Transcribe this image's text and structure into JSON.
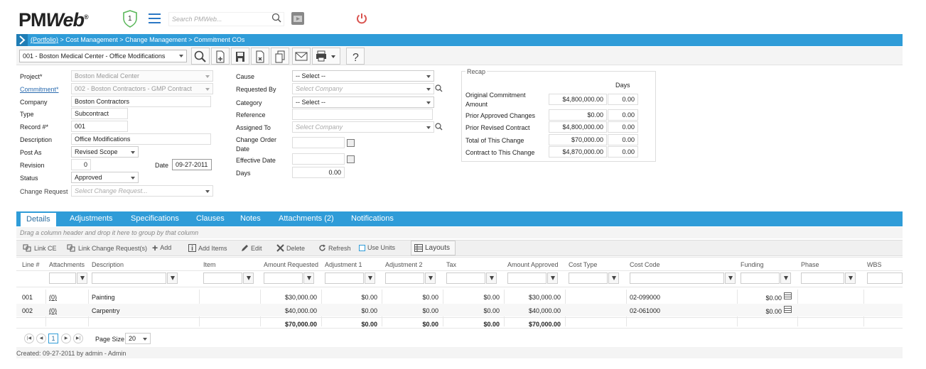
{
  "header": {
    "logo_text_a": "PM",
    "logo_text_b": "Web",
    "logo_mark": "®",
    "notif_count": "1",
    "search_placeholder": "Search PMWeb...",
    "icons": [
      "shield-icon",
      "menu-icon",
      "search-icon",
      "media-icon",
      "power-icon"
    ]
  },
  "breadcrumb": {
    "portfolio": "(Portfolio)",
    "rest": " > Cost Management > Change Management > Commitment COs"
  },
  "toolbar": {
    "record_selector": "001 - Boston Medical Center - Office Modifications",
    "icons": [
      "search-icon",
      "new-icon",
      "save-icon",
      "delete-icon",
      "copy-icon",
      "email-icon",
      "print-icon",
      "help-icon"
    ]
  },
  "form": {
    "project_label": "Project*",
    "project_value": "Boston Medical Center",
    "commitment_label": "Commitment*",
    "commitment_value": "002 - Boston Contractors - GMP Contract",
    "company_label": "Company",
    "company_value": "Boston Contractors",
    "type_label": "Type",
    "type_value": "Subcontract",
    "record_label": "Record #*",
    "record_value": "001",
    "description_label": "Description",
    "description_value": "Office Modifications",
    "postas_label": "Post As",
    "postas_value": "Revised Scope",
    "revision_label": "Revision",
    "revision_value": "0",
    "date_label": "Date",
    "date_value": "09-27-2011",
    "status_label": "Status",
    "status_value": "Approved",
    "changereq_label": "Change Request",
    "changereq_placeholder": "Select Change Request...",
    "cause_label": "Cause",
    "cause_value": "-- Select --",
    "requestedby_label": "Requested By",
    "requestedby_placeholder": "Select Company",
    "category_label": "Category",
    "category_value": "-- Select --",
    "reference_label": "Reference",
    "reference_value": "",
    "assignedto_label": "Assigned To",
    "assignedto_placeholder": "Select Company",
    "codate_label_1": "Change Order",
    "codate_label_2": "Date",
    "effdate_label": "Effective Date",
    "days_label": "Days",
    "days_value": "0.00"
  },
  "recap": {
    "title": "Recap",
    "days_header": "Days",
    "rows": [
      {
        "label": "Original Commitment",
        "label2": "Amount",
        "amount": "$4,800,000.00",
        "days": "0.00"
      },
      {
        "label": "Prior Approved Changes",
        "label2": "",
        "amount": "$0.00",
        "days": "0.00"
      },
      {
        "label": "Prior Revised Contract",
        "label2": "",
        "amount": "$4,800,000.00",
        "days": "0.00"
      },
      {
        "label": "Total of This Change",
        "label2": "",
        "amount": "$70,000.00",
        "days": "0.00"
      },
      {
        "label": "Contract to This Change",
        "label2": "",
        "amount": "$4,870,000.00",
        "days": "0.00"
      }
    ]
  },
  "tabs": [
    "Details",
    "Adjustments",
    "Specifications",
    "Clauses",
    "Notes",
    "Attachments (2)",
    "Notifications"
  ],
  "grid": {
    "group_hint": "Drag a column header and drop it here to group by that column",
    "toolbar": {
      "link_ce": "Link CE",
      "link_cr": "Link Change Request(s)",
      "add": "Add",
      "add_items": "Add Items",
      "edit": "Edit",
      "delete": "Delete",
      "refresh": "Refresh",
      "use_units": "Use Units",
      "layouts": "Layouts"
    },
    "columns": [
      "Line #",
      "Attachments",
      "Description",
      "Item",
      "Amount Requested",
      "Adjustment 1",
      "Adjustment 2",
      "Tax",
      "Amount Approved",
      "Cost Type",
      "Cost Code",
      "Funding",
      "Phase",
      "WBS"
    ],
    "rows": [
      {
        "line": "001",
        "att": "(0)",
        "desc": "Painting",
        "item": "",
        "req": "$30,000.00",
        "adj1": "$0.00",
        "adj2": "$0.00",
        "tax": "$0.00",
        "appr": "$30,000.00",
        "ctype": "",
        "ccode": "02-099000",
        "funding": "$0.00"
      },
      {
        "line": "002",
        "att": "(0)",
        "desc": "Carpentry",
        "item": "",
        "req": "$40,000.00",
        "adj1": "$0.00",
        "adj2": "$0.00",
        "tax": "$0.00",
        "appr": "$40,000.00",
        "ctype": "",
        "ccode": "02-061000",
        "funding": "$0.00"
      }
    ],
    "totals": {
      "req": "$70,000.00",
      "adj1": "$0.00",
      "adj2": "$0.00",
      "tax": "$0.00",
      "appr": "$70,000.00"
    },
    "pager": {
      "current": "1",
      "page_size_label": "Page Size",
      "page_size": "20"
    }
  },
  "footer": {
    "created": "Created:  09-27-2011 by admin - Admin"
  }
}
